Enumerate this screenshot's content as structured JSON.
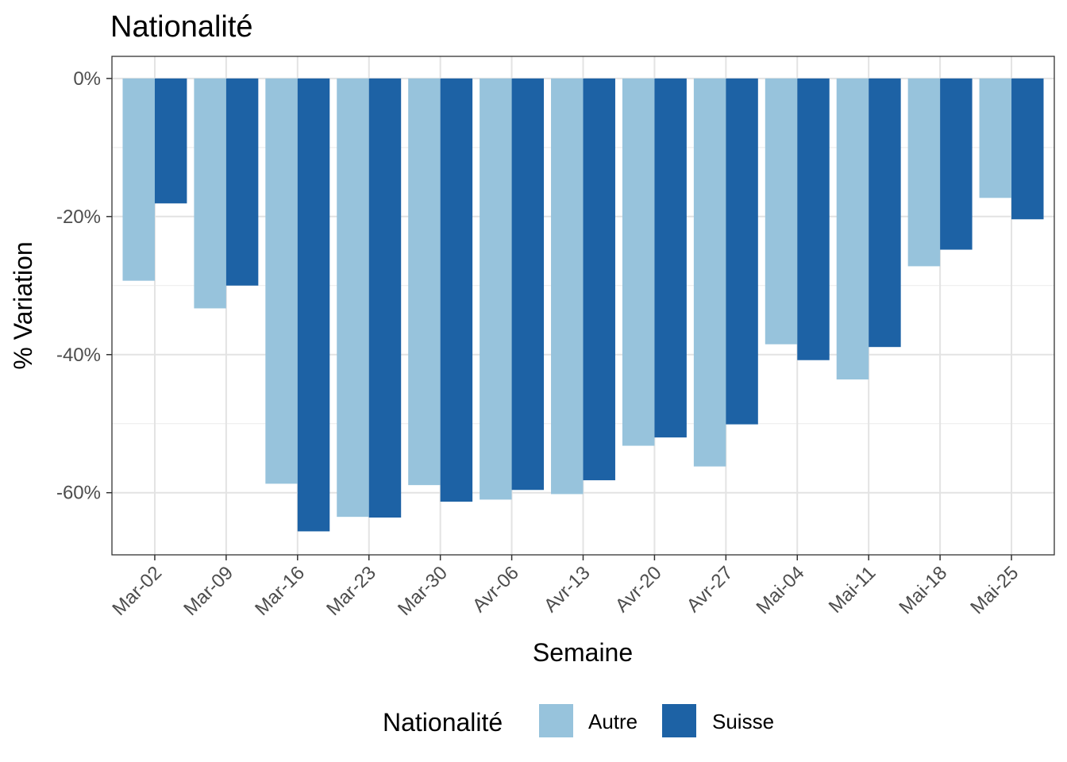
{
  "chart_data": {
    "type": "bar",
    "title": "Nationalité",
    "xlabel": "Semaine",
    "ylabel": "% Variation",
    "categories": [
      "Mar-02",
      "Mar-09",
      "Mar-16",
      "Mar-23",
      "Mar-30",
      "Avr-06",
      "Avr-13",
      "Avr-20",
      "Avr-27",
      "Mai-04",
      "Mai-11",
      "Mai-18",
      "Mai-25"
    ],
    "series": [
      {
        "name": "Autre",
        "color": "#97c3dc",
        "values": [
          -29.3,
          -33.3,
          -58.7,
          -63.5,
          -58.9,
          -61.0,
          -60.2,
          -53.2,
          -56.2,
          -38.5,
          -43.6,
          -27.2,
          -17.3
        ]
      },
      {
        "name": "Suisse",
        "color": "#1d62a5",
        "values": [
          -18.1,
          -30.0,
          -65.6,
          -63.6,
          -61.3,
          -59.6,
          -58.2,
          -52.0,
          -50.1,
          -40.8,
          -38.9,
          -24.8,
          -20.4
        ]
      }
    ],
    "ylim": [
      -69,
      3.2
    ],
    "yticks": [
      0,
      -20,
      -40,
      -60
    ],
    "ytick_labels": [
      "0%",
      "-20%",
      "-40%",
      "-60%"
    ],
    "grid": true,
    "legend": {
      "title": "Nationalité",
      "placement": "bottom",
      "entries": [
        "Autre",
        "Suisse"
      ]
    }
  }
}
